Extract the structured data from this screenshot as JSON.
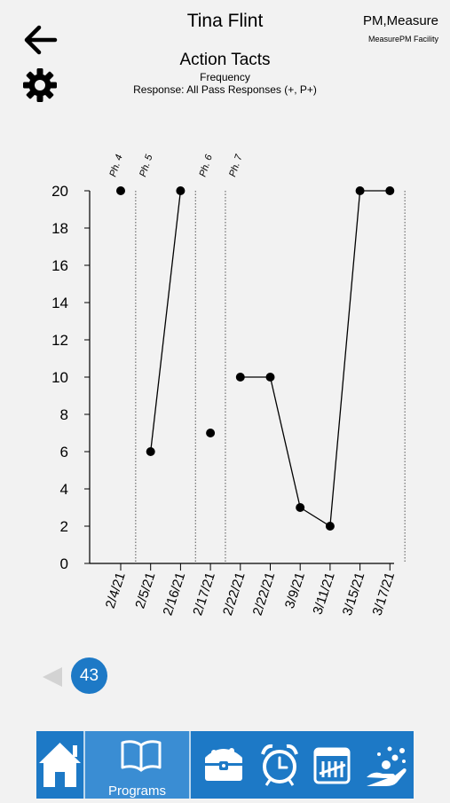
{
  "header": {
    "student_name": "Tina Flint",
    "org_name": "PM,Measure",
    "facility_name": "MeasurePM Facility"
  },
  "program": {
    "title": "Action Tacts",
    "measure": "Frequency",
    "response": "Response: All Pass Responses (+, P+)"
  },
  "icons": {
    "back": "arrow-left-icon",
    "settings": "gear-icon",
    "home": "home-icon",
    "programs": "book-icon",
    "treasure": "treasure-chest-icon",
    "alarm": "alarm-clock-icon",
    "tally": "tally-calendar-icon",
    "reward": "hand-sparkles-icon"
  },
  "colors": {
    "accent": "#1d79c6",
    "background": "#f2f2f2"
  },
  "pager": {
    "page": "43"
  },
  "nav": {
    "programs_label": "Programs"
  },
  "chart_data": {
    "type": "line",
    "categories": [
      "2/4/21",
      "2/5/21",
      "2/16/21",
      "2/17/21",
      "2/22/21",
      "2/22/21",
      "3/9/21",
      "3/11/21",
      "3/15/21",
      "3/17/21"
    ],
    "values": [
      20,
      6,
      20,
      7,
      10,
      10,
      3,
      2,
      20,
      20
    ],
    "segments": [
      [
        0
      ],
      [
        1,
        2
      ],
      [
        3
      ],
      [
        4,
        5,
        6,
        7,
        8,
        9
      ]
    ],
    "phases": [
      {
        "label": "Ph. 4",
        "start": 0
      },
      {
        "label": "Ph. 5",
        "start": 1
      },
      {
        "label": "Ph. 6",
        "start": 3
      },
      {
        "label": "Ph. 7",
        "start": 4
      }
    ],
    "ylim": [
      0,
      20
    ],
    "yticks": [
      0,
      2,
      4,
      6,
      8,
      10,
      12,
      14,
      16,
      18,
      20
    ],
    "grid": false
  }
}
